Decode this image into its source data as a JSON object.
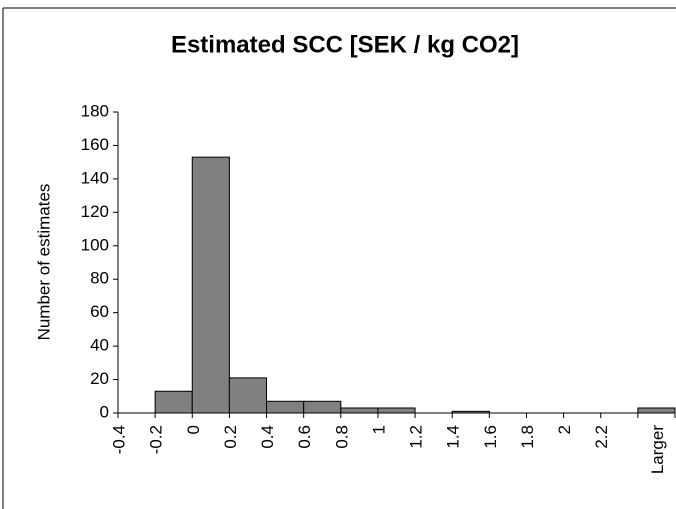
{
  "chart_data": {
    "type": "bar",
    "title": "Estimated SCC [SEK / kg CO2]",
    "y_label": "Number of estimates",
    "categories": [
      "-0.4",
      "-0.2",
      "0",
      "0.2",
      "0.4",
      "0.6",
      "0.8",
      "1",
      "1.2",
      "1.4",
      "1.6",
      "1.8",
      "2",
      "2.2",
      "Larger"
    ],
    "values": [
      0,
      13,
      153,
      21,
      7,
      7,
      3,
      3,
      0,
      1,
      0,
      0,
      0,
      0,
      3
    ],
    "color": "#808080",
    "ylim": [
      0,
      180
    ],
    "yticks": [
      0,
      20,
      40,
      60,
      80,
      100,
      120,
      140,
      160,
      180
    ],
    "grid": false
  }
}
